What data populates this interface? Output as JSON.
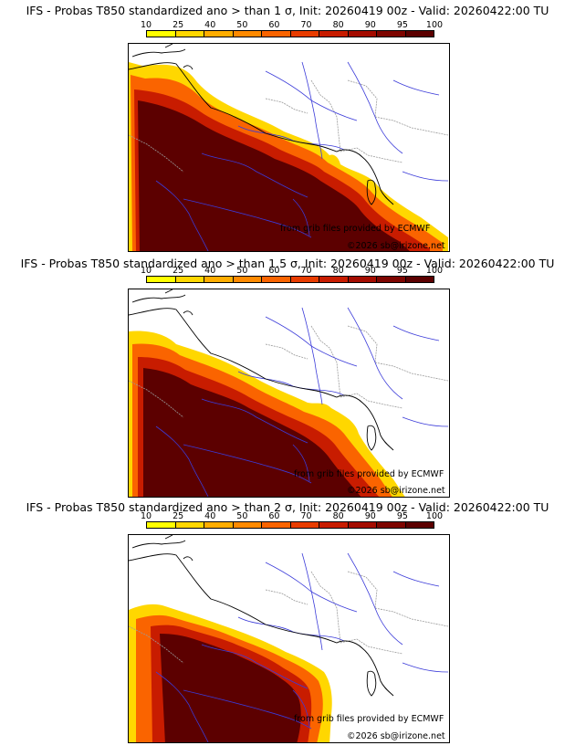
{
  "panels": [
    {
      "title": "IFS - Probas T850  standardized ano > than 1 σ, Init: 20260419 00z - Valid: 20260422:00 TU",
      "sigma": 1
    },
    {
      "title": "IFS - Probas T850  standardized ano > than 1.5 σ, Init: 20260419 00z - Valid: 20260422:00 TU",
      "sigma": 1.5
    },
    {
      "title": "IFS - Probas T850  standardized ano > than 2 σ, Init: 20260419 00z - Valid: 20260422:00 TU",
      "sigma": 2
    }
  ],
  "scale": {
    "labels": [
      "10",
      "25",
      "40",
      "50",
      "60",
      "70",
      "80",
      "90",
      "95",
      "100"
    ],
    "colors": [
      "#ffff00",
      "#ffd700",
      "#ffad00",
      "#ff8a00",
      "#fa6400",
      "#e83c00",
      "#c81c00",
      "#a40c00",
      "#7e0500",
      "#5c0000"
    ]
  },
  "credit_source": "from grib files provided by ECMWF",
  "credit_site": "©2026 sb@irizone.net",
  "colors": {
    "rivers": "#3b3bd9",
    "borders": "#9a9a9a",
    "coast": "#000000"
  }
}
